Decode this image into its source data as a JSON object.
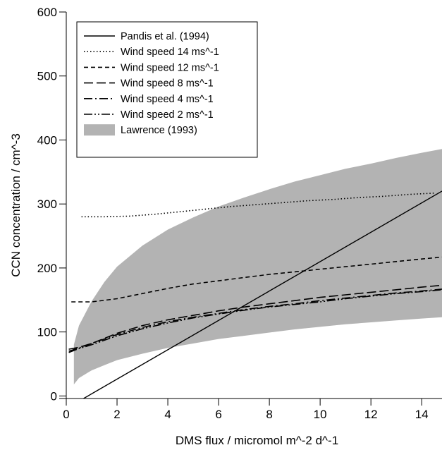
{
  "chart_data": {
    "type": "line",
    "title": "",
    "xlabel": "DMS flux / micromol m^-2 d^-1",
    "ylabel": "CCN concentration / cm^-3",
    "xlim": [
      0,
      14.8
    ],
    "ylim": [
      -4,
      600
    ],
    "x_ticks": [
      0,
      2,
      4,
      6,
      8,
      10,
      12,
      14
    ],
    "y_ticks": [
      0,
      100,
      200,
      300,
      400,
      500,
      600
    ],
    "grid": false,
    "legend_position": "top-left",
    "series": [
      {
        "name": "Pandis et al. (1994)",
        "style": "solid",
        "color": "#000000",
        "x": [
          0.2,
          14.8
        ],
        "y": [
          -15,
          320
        ]
      },
      {
        "name": "Wind speed 14 ms^-1",
        "style": "dotted",
        "color": "#000000",
        "x": [
          0.6,
          1.5,
          2.5,
          3.5,
          4.5,
          5.5,
          6.5,
          7.5,
          8.5,
          9.5,
          10.5,
          11.5,
          12.5,
          13.5,
          14.5
        ],
        "y": [
          280,
          280,
          281,
          284,
          288,
          292,
          296,
          299,
          302,
          305,
          307,
          310,
          312,
          315,
          317
        ]
      },
      {
        "name": "Wind speed 12 ms^-1",
        "style": "dashed",
        "color": "#000000",
        "x": [
          0.2,
          1.0,
          2.0,
          3.0,
          4.0,
          5.0,
          6.0,
          7.0,
          8.0,
          9.0,
          10.0,
          11.0,
          12.0,
          13.0,
          14.0,
          14.8
        ],
        "y": [
          147,
          147,
          152,
          160,
          168,
          175,
          180,
          185,
          190,
          194,
          198,
          202,
          206,
          210,
          214,
          217
        ]
      },
      {
        "name": "Wind speed 8 ms^-1",
        "style": "longdash",
        "color": "#000000",
        "x": [
          0.1,
          0.5,
          1.0,
          2.0,
          3.0,
          4.0,
          5.0,
          6.0,
          7.0,
          8.0,
          9.0,
          10.0,
          11.0,
          12.0,
          13.0,
          14.0,
          14.8
        ],
        "y": [
          73,
          76,
          82,
          98,
          110,
          119,
          126,
          133,
          139,
          144,
          149,
          154,
          158,
          162,
          166,
          170,
          173
        ]
      },
      {
        "name": "Wind speed 4 ms^-1",
        "style": "dashdot",
        "color": "#000000",
        "x": [
          0.1,
          0.5,
          1.0,
          2.0,
          3.0,
          4.0,
          5.0,
          6.0,
          7.0,
          8.0,
          9.0,
          10.0,
          11.0,
          12.0,
          13.0,
          14.0,
          14.8
        ],
        "y": [
          70,
          75,
          82,
          96,
          107,
          116,
          123,
          129,
          135,
          140,
          144,
          149,
          153,
          157,
          161,
          164,
          167
        ]
      },
      {
        "name": "Wind speed 2 ms^-1",
        "style": "dashdotdot",
        "color": "#000000",
        "x": [
          0.1,
          0.5,
          1.0,
          2.0,
          3.0,
          4.0,
          5.0,
          6.0,
          7.0,
          8.0,
          9.0,
          10.0,
          11.0,
          12.0,
          13.0,
          14.0,
          14.8
        ],
        "y": [
          68,
          74,
          80,
          94,
          105,
          114,
          122,
          128,
          134,
          139,
          143,
          147,
          152,
          156,
          160,
          163,
          166
        ]
      }
    ],
    "band": {
      "name": "Lawrence (1993)",
      "color": "#b3b3b3",
      "x": [
        0.3,
        0.5,
        1.0,
        1.5,
        2.0,
        3.0,
        4.0,
        5.0,
        6.0,
        7.0,
        8.0,
        9.0,
        10.0,
        11.0,
        12.0,
        13.0,
        14.0,
        14.8
      ],
      "upper": [
        80,
        110,
        148,
        178,
        202,
        235,
        260,
        279,
        296,
        310,
        323,
        335,
        345,
        355,
        363,
        372,
        380,
        386
      ],
      "lower": [
        18,
        28,
        40,
        48,
        56,
        66,
        75,
        82,
        89,
        94,
        99,
        104,
        108,
        112,
        115,
        118,
        121,
        123
      ]
    }
  }
}
